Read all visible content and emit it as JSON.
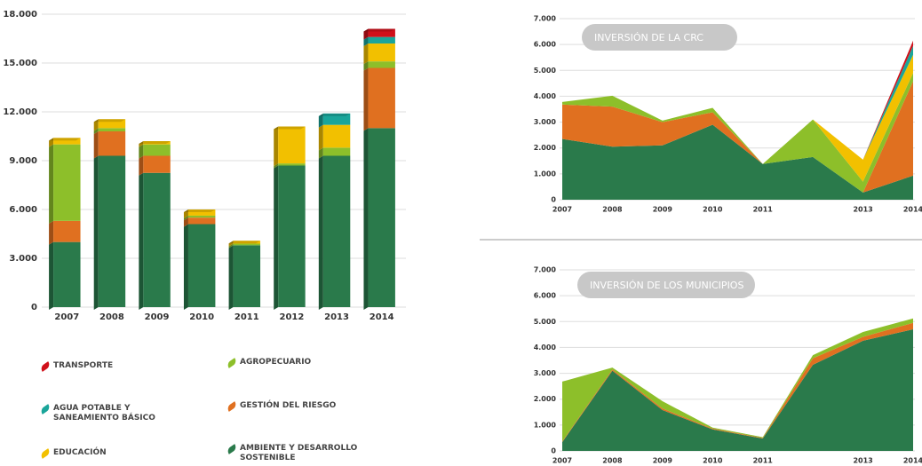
{
  "chart_data": [
    {
      "type": "bar",
      "stacked": true,
      "categories": [
        "2007",
        "2008",
        "2009",
        "2010",
        "2011",
        "2012",
        "2013",
        "2014"
      ],
      "series": [
        {
          "name": "AMBIENTE Y DESARROLLO SOSTENIBLE",
          "color": "#2a7a4b",
          "values": [
            4000,
            9300,
            8250,
            5100,
            3800,
            8700,
            9300,
            11000
          ]
        },
        {
          "name": "GESTIÓN DEL RIESGO",
          "color": "#e07020",
          "values": [
            1300,
            1500,
            1050,
            400,
            0,
            0,
            0,
            3700
          ]
        },
        {
          "name": "AGROPECUARIO",
          "color": "#8dbf2a",
          "values": [
            4700,
            200,
            700,
            120,
            100,
            130,
            500,
            400
          ]
        },
        {
          "name": "EDUCACIÓN",
          "color": "#f2c000",
          "values": [
            400,
            550,
            200,
            380,
            180,
            2270,
            1400,
            1100
          ]
        },
        {
          "name": "AGUA POTABLE Y SANEAMIENTO BÁSICO",
          "color": "#1aa59a",
          "values": [
            0,
            0,
            0,
            0,
            0,
            0,
            700,
            400
          ]
        },
        {
          "name": "TRANSPORTE",
          "color": "#d0101a",
          "values": [
            0,
            0,
            0,
            0,
            0,
            0,
            0,
            500
          ]
        }
      ],
      "ylim": [
        0,
        18000
      ],
      "yticks": [
        0,
        {
          "value": 3000,
          "label": "3.000"
        },
        {
          "value": 6000,
          "label": "6.000"
        },
        {
          "value": 9000,
          "label": "9.000"
        },
        {
          "value": 12000,
          "label": "12.000"
        },
        {
          "value": 15000,
          "label": "15.000"
        },
        {
          "value": 18000,
          "label": "18.000"
        }
      ],
      "grid": true
    },
    {
      "type": "area",
      "stacked": true,
      "title": "INVERSIÓN DE LA CRC",
      "categories": [
        "2007",
        "2008",
        "2009",
        "2010",
        "2011",
        null,
        "2013",
        "2014"
      ],
      "series": [
        {
          "color": "#2a7a4b",
          "values": [
            2350,
            2050,
            2100,
            2900,
            1380,
            1650,
            280,
            930
          ]
        },
        {
          "color": "#e07020",
          "values": [
            1330,
            1550,
            900,
            480,
            0,
            0,
            0,
            3650
          ]
        },
        {
          "color": "#8dbf2a",
          "values": [
            100,
            420,
            60,
            170,
            0,
            1450,
            420,
            320
          ]
        },
        {
          "color": "#f2c000",
          "values": [
            0,
            0,
            0,
            0,
            0,
            0,
            850,
            700
          ]
        },
        {
          "color": "#1aa59a",
          "values": [
            0,
            0,
            0,
            0,
            0,
            0,
            0,
            350
          ]
        },
        {
          "color": "#d0101a",
          "values": [
            0,
            0,
            0,
            0,
            0,
            0,
            0,
            200
          ]
        }
      ],
      "ylim": [
        0,
        7000
      ],
      "yticks": [
        0,
        {
          "value": 1000,
          "label": "1.000"
        },
        {
          "value": 2000,
          "label": "2.000"
        },
        {
          "value": 3000,
          "label": "3.000"
        },
        {
          "value": 4000,
          "label": "4.000"
        },
        {
          "value": 5000,
          "label": "5.000"
        },
        {
          "value": 6000,
          "label": "6.000"
        },
        {
          "value": 7000,
          "label": "7.000"
        }
      ],
      "grid": true
    },
    {
      "type": "area",
      "stacked": true,
      "title": "INVERSIÓN DE LOS MUNICIPIOS",
      "categories": [
        "2007",
        "2008",
        "2009",
        "2010",
        "2011",
        null,
        "2013",
        "2014"
      ],
      "series": [
        {
          "color": "#2a7a4b",
          "values": [
            340,
            3100,
            1580,
            830,
            480,
            3330,
            4260,
            4700
          ]
        },
        {
          "color": "#e07020",
          "values": [
            30,
            50,
            60,
            30,
            20,
            250,
            150,
            250
          ]
        },
        {
          "color": "#8dbf2a",
          "values": [
            2310,
            70,
            280,
            40,
            30,
            120,
            190,
            170
          ]
        }
      ],
      "ylim": [
        0,
        7000
      ],
      "yticks": [
        0,
        {
          "value": 1000,
          "label": "1.000"
        },
        {
          "value": 2000,
          "label": "2.000"
        },
        {
          "value": 3000,
          "label": "3.000"
        },
        {
          "value": 4000,
          "label": "4.000"
        },
        {
          "value": 5000,
          "label": "5.000"
        },
        {
          "value": 6000,
          "label": "6.000"
        },
        {
          "value": 7000,
          "label": "7.000"
        }
      ],
      "grid": true
    }
  ]
}
